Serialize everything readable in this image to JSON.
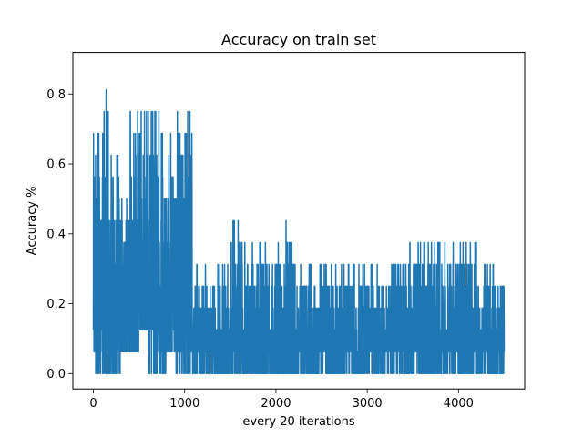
{
  "chart_data": {
    "type": "line",
    "title": "Accuracy on train set",
    "xlabel": "every 20 iterations",
    "ylabel": "Accuracy %",
    "xlim": [
      -225,
      4725
    ],
    "ylim": [
      -0.044,
      0.919
    ],
    "xticks": [
      0,
      1000,
      2000,
      3000,
      4000
    ],
    "yticks": [
      0.0,
      0.2,
      0.4,
      0.6,
      0.8
    ],
    "grid": false,
    "legend": "none",
    "series": [
      {
        "color": "#1f77b4",
        "x_range": [
          0,
          4500
        ],
        "segments": [
          {
            "x": [
              0,
              100
            ],
            "min": 0.0,
            "max": 0.6875
          },
          {
            "x": [
              100,
              200
            ],
            "min": 0.0,
            "max": 0.8125
          },
          {
            "x": [
              200,
              300
            ],
            "min": 0.0,
            "max": 0.625
          },
          {
            "x": [
              300,
              400
            ],
            "min": 0.0625,
            "max": 0.625
          },
          {
            "x": [
              400,
              500
            ],
            "min": 0.0625,
            "max": 0.8125
          },
          {
            "x": [
              500,
              600
            ],
            "min": 0.125,
            "max": 0.875
          },
          {
            "x": [
              600,
              700
            ],
            "min": 0.0,
            "max": 0.8125
          },
          {
            "x": [
              700,
              800
            ],
            "min": 0.0,
            "max": 0.8125
          },
          {
            "x": [
              800,
              900
            ],
            "min": 0.0625,
            "max": 0.6875
          },
          {
            "x": [
              900,
              1000
            ],
            "min": 0.0,
            "max": 0.75
          },
          {
            "x": [
              1000,
              1080
            ],
            "min": 0.0,
            "max": 0.75
          },
          {
            "x": [
              1080,
              1500
            ],
            "min": 0.0,
            "max": 0.3125
          },
          {
            "x": [
              1500,
              1700
            ],
            "min": 0.0,
            "max": 0.4375
          },
          {
            "x": [
              1700,
              2100
            ],
            "min": 0.0,
            "max": 0.375
          },
          {
            "x": [
              2100,
              2200
            ],
            "min": 0.0,
            "max": 0.4375
          },
          {
            "x": [
              2200,
              3300
            ],
            "min": 0.0,
            "max": 0.3125
          },
          {
            "x": [
              3300,
              3500
            ],
            "min": 0.0,
            "max": 0.375
          },
          {
            "x": [
              3500,
              4200
            ],
            "min": 0.0,
            "max": 0.375
          },
          {
            "x": [
              4200,
              4500
            ],
            "min": 0.0,
            "max": 0.3125
          }
        ]
      }
    ]
  }
}
